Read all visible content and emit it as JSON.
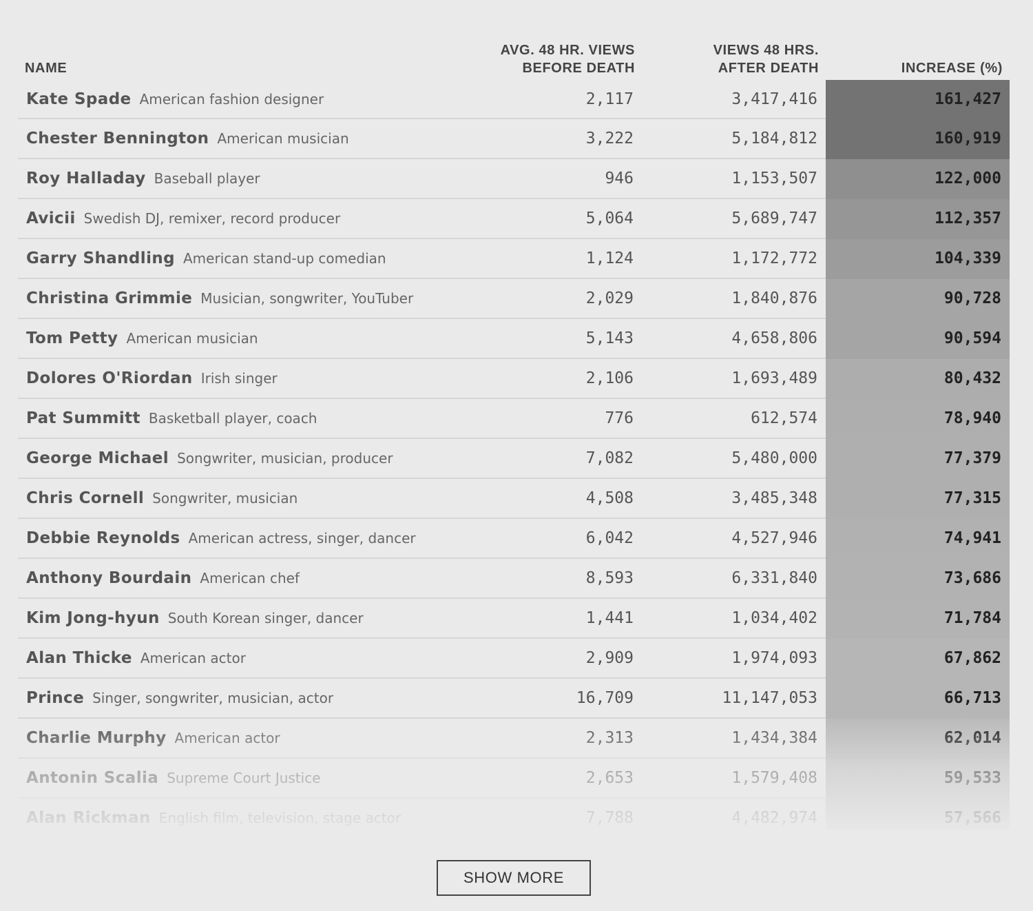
{
  "table": {
    "headers": {
      "name": "NAME",
      "before_line1": "AVG. 48 HR. VIEWS",
      "before_line2": "BEFORE DEATH",
      "after_line1": "VIEWS 48 HRS.",
      "after_line2": "AFTER DEATH",
      "increase": "INCREASE (%)"
    },
    "rows": [
      {
        "name": "Kate Spade",
        "desc": "American fashion designer",
        "before": "2,117",
        "after": "3,417,416",
        "increase": "161,427"
      },
      {
        "name": "Chester Bennington",
        "desc": "American musician",
        "before": "3,222",
        "after": "5,184,812",
        "increase": "160,919"
      },
      {
        "name": "Roy Halladay",
        "desc": "Baseball player",
        "before": "946",
        "after": "1,153,507",
        "increase": "122,000"
      },
      {
        "name": "Avicii",
        "desc": "Swedish DJ, remixer, record producer",
        "before": "5,064",
        "after": "5,689,747",
        "increase": "112,357"
      },
      {
        "name": "Garry Shandling",
        "desc": "American stand-up comedian",
        "before": "1,124",
        "after": "1,172,772",
        "increase": "104,339"
      },
      {
        "name": "Christina Grimmie",
        "desc": "Musician, songwriter, YouTuber",
        "before": "2,029",
        "after": "1,840,876",
        "increase": "90,728"
      },
      {
        "name": "Tom Petty",
        "desc": "American musician",
        "before": "5,143",
        "after": "4,658,806",
        "increase": "90,594"
      },
      {
        "name": "Dolores O'Riordan",
        "desc": "Irish singer",
        "before": "2,106",
        "after": "1,693,489",
        "increase": "80,432"
      },
      {
        "name": "Pat Summitt",
        "desc": "Basketball player, coach",
        "before": "776",
        "after": "612,574",
        "increase": "78,940"
      },
      {
        "name": "George Michael",
        "desc": "Songwriter, musician, producer",
        "before": "7,082",
        "after": "5,480,000",
        "increase": "77,379"
      },
      {
        "name": "Chris Cornell",
        "desc": "Songwriter, musician",
        "before": "4,508",
        "after": "3,485,348",
        "increase": "77,315"
      },
      {
        "name": "Debbie Reynolds",
        "desc": "American actress, singer, dancer",
        "before": "6,042",
        "after": "4,527,946",
        "increase": "74,941"
      },
      {
        "name": "Anthony Bourdain",
        "desc": "American chef",
        "before": "8,593",
        "after": "6,331,840",
        "increase": "73,686"
      },
      {
        "name": "Kim Jong-hyun",
        "desc": "South Korean singer, dancer",
        "before": "1,441",
        "after": "1,034,402",
        "increase": "71,784"
      },
      {
        "name": "Alan Thicke",
        "desc": "American actor",
        "before": "2,909",
        "after": "1,974,093",
        "increase": "67,862"
      },
      {
        "name": "Prince",
        "desc": "Singer, songwriter, musician, actor",
        "before": "16,709",
        "after": "11,147,053",
        "increase": "66,713"
      },
      {
        "name": "Charlie Murphy",
        "desc": "American actor",
        "before": "2,313",
        "after": "1,434,384",
        "increase": "62,014"
      },
      {
        "name": "Antonin Scalia",
        "desc": "Supreme Court Justice",
        "before": "2,653",
        "after": "1,579,408",
        "increase": "59,533"
      },
      {
        "name": "Alan Rickman",
        "desc": "English film, television, stage actor",
        "before": "7,788",
        "after": "4,482,974",
        "increase": "57,566"
      }
    ]
  },
  "heat_colors": {
    "max": "#737373",
    "min": "#bdbdbd",
    "scale_max_value": 161427,
    "scale_min_value": 57566
  },
  "show_more_label": "SHOW MORE"
}
